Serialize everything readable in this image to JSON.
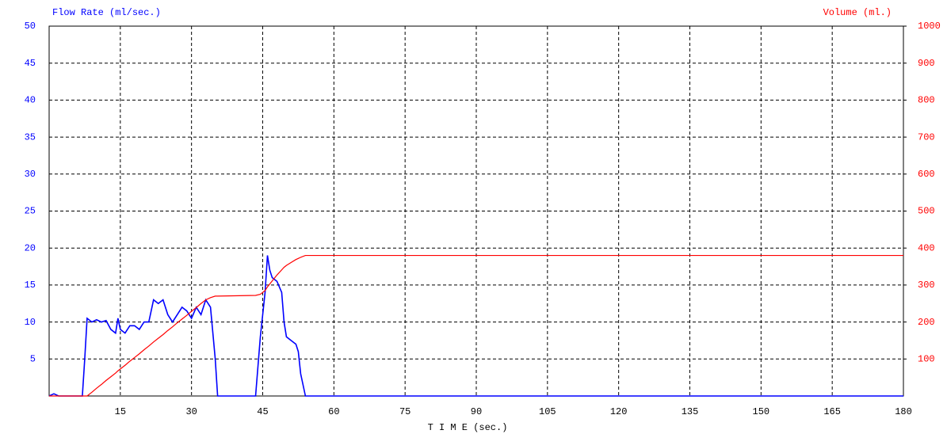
{
  "chart_data": {
    "type": "line",
    "y_title": "Flow Rate (ml/sec.)",
    "y2_title": "Volume (ml.)",
    "x_label": "T I M E (sec.)",
    "x": [
      0,
      1,
      2,
      7,
      7.5,
      8,
      9,
      10,
      11,
      12,
      13,
      14,
      14.5,
      15,
      16,
      17,
      18,
      19,
      20,
      21,
      22,
      23,
      24,
      25,
      26,
      27,
      28,
      29,
      30,
      31,
      32,
      33,
      34,
      35,
      35.5,
      43.5,
      44.5,
      45.5,
      46,
      46.5,
      47,
      48,
      49,
      49.5,
      50,
      51,
      52,
      52.5,
      53,
      54,
      180
    ],
    "series": [
      {
        "name": "Flow Rate (ml/sec.)",
        "color": "#0000ff",
        "axis": "y",
        "values": [
          0,
          0.3,
          0,
          0,
          5,
          10.5,
          10,
          10.3,
          10,
          10.2,
          9,
          8.5,
          10.5,
          9,
          8.5,
          9.5,
          9.5,
          9,
          10,
          10,
          13,
          12.5,
          13,
          11,
          10,
          11,
          12,
          11.5,
          10.5,
          12,
          11,
          13,
          12,
          5,
          0,
          0,
          8,
          14,
          19,
          17,
          16,
          15.5,
          14,
          10,
          8,
          7.5,
          7,
          6,
          3,
          0,
          0
        ]
      },
      {
        "name": "Volume (ml.)",
        "color": "#ff0000",
        "axis": "y2",
        "values": [
          0,
          0,
          0,
          0,
          0,
          0,
          10,
          21,
          31,
          42,
          52,
          62,
          68,
          73,
          83,
          94,
          104,
          114,
          125,
          135,
          146,
          156,
          166,
          177,
          187,
          198,
          208,
          218,
          229,
          239,
          250,
          260,
          266,
          270,
          270,
          272,
          275,
          285,
          295,
          303,
          311,
          327,
          341,
          348,
          353,
          361,
          369,
          372,
          375,
          380,
          380
        ]
      }
    ],
    "xlim": [
      0,
      180
    ],
    "xticks": [
      15,
      30,
      45,
      60,
      75,
      90,
      105,
      120,
      135,
      150,
      165,
      180
    ],
    "ylim": [
      0,
      50
    ],
    "yticks": [
      5,
      10,
      15,
      20,
      25,
      30,
      35,
      40,
      45,
      50
    ],
    "y2lim": [
      0,
      1000
    ],
    "y2ticks": [
      100,
      200,
      300,
      400,
      500,
      600,
      700,
      800,
      900,
      1000
    ],
    "grid": true,
    "y_color": "#0000ff",
    "y2_color": "#ff0000",
    "grid_color": "#000000"
  }
}
